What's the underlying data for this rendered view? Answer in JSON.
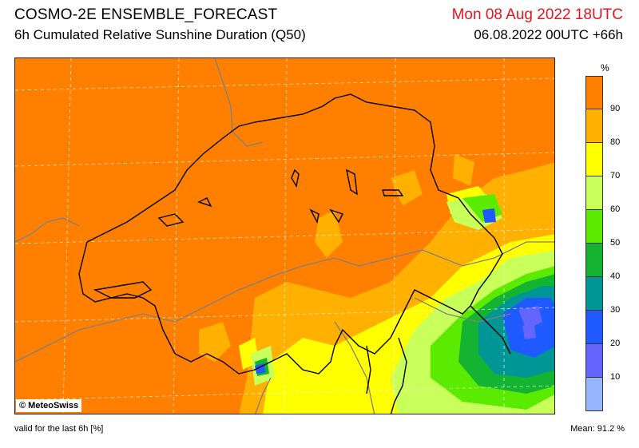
{
  "header": {
    "title": "COSMO-2E ENSEMBLE_FORECAST",
    "subtitle": "6h Cumulated Relative Sunshine Duration (Q50)",
    "valid_date": "Mon 08 Aug 2022 18UTC",
    "run": "06.08.2022 00UTC +66h",
    "date_color": "#e8141e"
  },
  "map": {
    "copyright": "© MeteoSwiss",
    "colors": {
      "background": "#ff7f00",
      "orange2": "#ffb000",
      "yellow": "#ffff00",
      "lightgreen": "#c8ff5a",
      "green": "#5aeb00",
      "darkgreen": "#14b432",
      "teal": "#009696",
      "blue": "#1e5aff",
      "lightblue": "#6464ff",
      "grid": "#ffffff",
      "border": "#000000"
    }
  },
  "legend": {
    "unit": "%",
    "labels": [
      "90",
      "80",
      "70",
      "60",
      "50",
      "40",
      "30",
      "20",
      "10"
    ],
    "colors": [
      "#ff7f00",
      "#ffb000",
      "#ffff00",
      "#c8ff5a",
      "#5aeb00",
      "#14b432",
      "#009696",
      "#1e5aff",
      "#6464ff",
      "#96b4ff"
    ]
  },
  "footer": {
    "valid_text": "valid for the last 6h [%]",
    "mean_text": "Mean:  91.2 %"
  }
}
